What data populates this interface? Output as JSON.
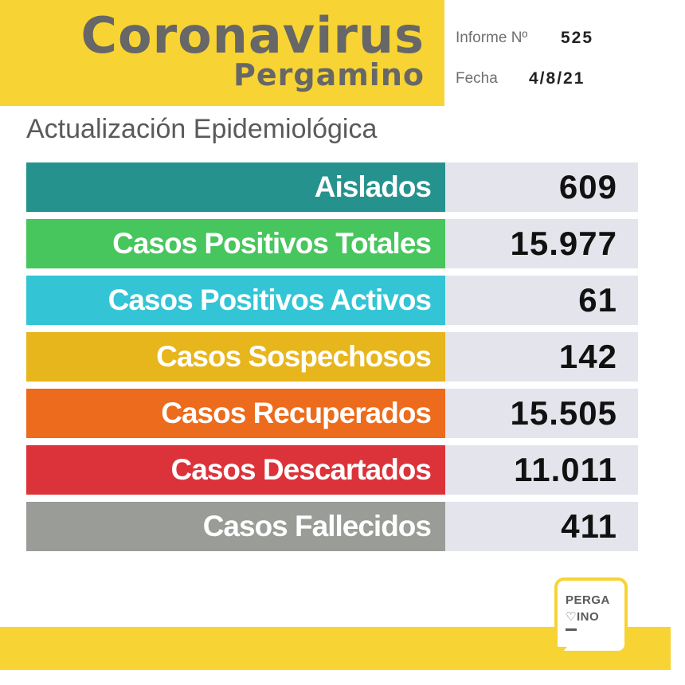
{
  "header": {
    "title": "Coronavirus",
    "subtitle": "Pergamino",
    "report_label": "Informe Nº",
    "report_number": "525",
    "date_label": "Fecha",
    "date_value": "4/8/21"
  },
  "section_title": "Actualización Epidemiológica",
  "stats": [
    {
      "label": "Aislados",
      "value": "609",
      "color": "#26928e"
    },
    {
      "label": "Casos Positivos Totales",
      "value": "15.977",
      "color": "#47c65d"
    },
    {
      "label": "Casos Positivos Activos",
      "value": "61",
      "color": "#33c5d6"
    },
    {
      "label": "Casos Sospechosos",
      "value": "142",
      "color": "#e7b51c"
    },
    {
      "label": "Casos Recuperados",
      "value": "15.505",
      "color": "#ec6b1c"
    },
    {
      "label": "Casos Descartados",
      "value": "11.011",
      "color": "#dc333b"
    },
    {
      "label": "Casos Fallecidos",
      "value": "411",
      "color": "#9a9c98"
    }
  ],
  "logo": {
    "line1": "PERGA",
    "line2": "♡INO"
  },
  "colors": {
    "brand_yellow": "#f7d433",
    "title_gray": "#676767",
    "value_background": "#e4e4ec"
  }
}
